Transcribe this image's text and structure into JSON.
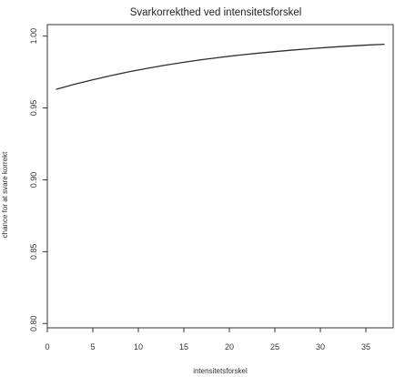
{
  "chart_data": {
    "type": "line",
    "title": "Svarkorrekthed ved intensitetsforskel",
    "xlabel": "intensitetsforskel",
    "ylabel": "chance for at svare korrekt",
    "xlim": [
      0,
      38
    ],
    "ylim": [
      0.797,
      1.008
    ],
    "x_ticks": [
      0,
      5,
      10,
      15,
      20,
      25,
      30,
      35
    ],
    "y_ticks": [
      0.8,
      0.85,
      0.9,
      0.95,
      1.0
    ],
    "x_tick_labels": [
      "0",
      "5",
      "10",
      "15",
      "20",
      "25",
      "30",
      "35"
    ],
    "y_tick_labels": [
      "0.80",
      "0.85",
      "0.90",
      "0.95",
      "1.00"
    ],
    "grid": false,
    "series": [
      {
        "color": "#3a2a2a",
        "x": [
          1,
          3,
          5,
          7,
          9,
          11,
          13,
          15,
          17,
          19,
          21,
          23,
          25,
          27,
          29,
          31,
          33,
          35,
          37
        ],
        "y": [
          0.963,
          0.9665,
          0.9696,
          0.9725,
          0.9752,
          0.9776,
          0.9798,
          0.9818,
          0.9836,
          0.9852,
          0.9867,
          0.988,
          0.9892,
          0.9903,
          0.9913,
          0.9922,
          0.993,
          0.9937,
          0.9943
        ]
      }
    ]
  }
}
